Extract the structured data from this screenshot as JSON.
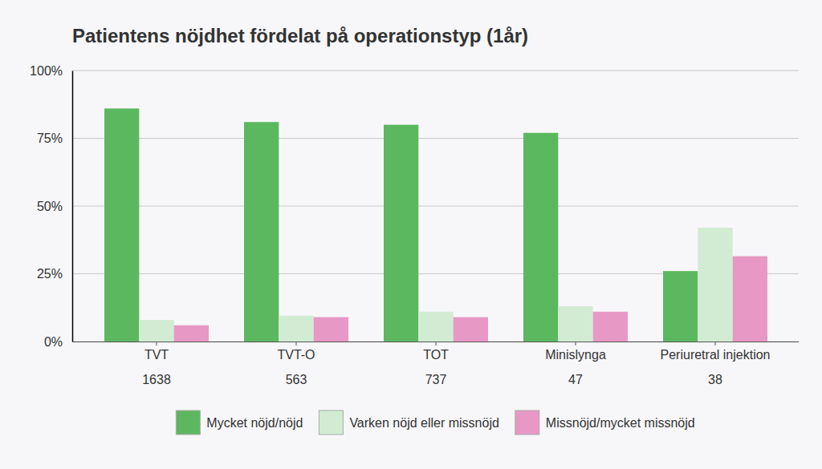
{
  "chart_data": {
    "type": "bar",
    "title": "Patientens nöjdhet fördelat på operationstyp (1år)",
    "categories": [
      "TVT",
      "TVT-O",
      "TOT",
      "Minislynga",
      "Periuretral injektion"
    ],
    "counts": [
      1638,
      563,
      737,
      47,
      38
    ],
    "series": [
      {
        "name": "Mycket nöjd/nöjd",
        "color": "#5cb85f",
        "values": [
          86,
          81,
          80,
          77,
          26
        ]
      },
      {
        "name": "Varken nöjd eller missnöjd",
        "color": "#d2ecd3",
        "values": [
          8,
          9.5,
          11,
          13,
          42
        ]
      },
      {
        "name": "Missnöjd/mycket missnöjd",
        "color": "#e898c4",
        "values": [
          6,
          9,
          9,
          11,
          31.5
        ]
      }
    ],
    "ylim": [
      0,
      100
    ],
    "yticks": [
      {
        "value": 0,
        "label": "0%"
      },
      {
        "value": 25,
        "label": "25%"
      },
      {
        "value": 50,
        "label": "50%"
      },
      {
        "value": 75,
        "label": "75%"
      },
      {
        "value": 100,
        "label": "100%"
      }
    ],
    "grid": true,
    "legend": "bottom"
  }
}
